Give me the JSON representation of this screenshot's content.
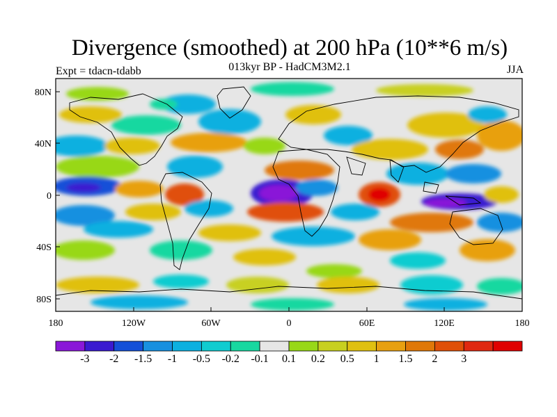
{
  "title": "Divergence (smoothed) at 200 hPa (10**6 m/s)",
  "subtitle": "013kyr BP - HadCM3M2.1",
  "left_label": "Expt = tdacn-tdabb",
  "right_label": "JJA",
  "y_ticks": [
    "80N",
    "40N",
    "0",
    "40S",
    "80S"
  ],
  "x_ticks": [
    "180",
    "120W",
    "60W",
    "0",
    "60E",
    "120E",
    "180"
  ],
  "colorbar": {
    "colors": [
      "#8a18d8",
      "#3a1ad0",
      "#1450d8",
      "#1890e0",
      "#0cb0e0",
      "#10ccd0",
      "#18d8a0",
      "#e6e6e6",
      "#98d818",
      "#c8d020",
      "#e0c010",
      "#e8a010",
      "#e07808",
      "#e05008",
      "#e02810",
      "#e00000"
    ],
    "labels": [
      "-3",
      "-2",
      "-1.5",
      "-1",
      "-0.5",
      "-0.2",
      "-0.1",
      "0.1",
      "0.2",
      "0.5",
      "1",
      "1.5",
      "2",
      "3"
    ]
  }
}
